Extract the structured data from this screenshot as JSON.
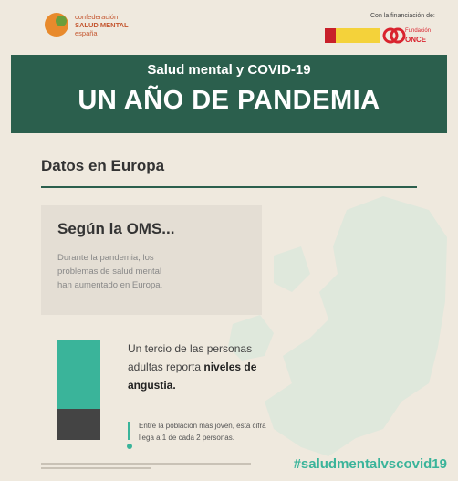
{
  "header": {
    "logo": [
      "confederación",
      "SALUD MENTAL",
      "españa"
    ],
    "funding_label": "Con la financiación de:",
    "funder": [
      "Fundación",
      "ONCE"
    ]
  },
  "banner": {
    "subtitle": "Salud mental y COVID-19",
    "title": "UN AÑO DE PANDEMIA"
  },
  "section": {
    "title": "Datos en Europa"
  },
  "who_box": {
    "title": "Según la OMS...",
    "text": "Durante la pandemia, los problemas de salud mental han aumentado en Europa."
  },
  "stat": {
    "text": "Un tercio de las personas adultas reporta ",
    "highlight": "niveles de angustia.",
    "note": "Entre la población más joven, esta cifra llega a 1 de cada 2 personas."
  },
  "hashtag": "#saludmentalvscovid19"
}
